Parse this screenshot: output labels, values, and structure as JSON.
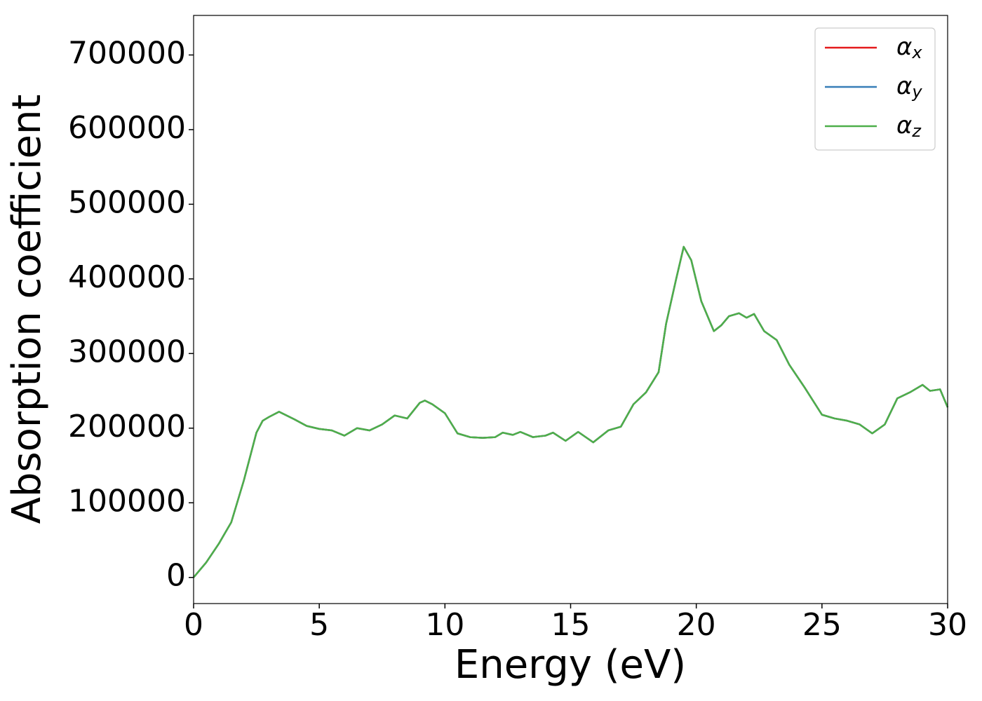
{
  "chart_data": {
    "type": "line",
    "xlabel": "Energy (eV)",
    "ylabel": "Absorption coefficient",
    "x": [
      0,
      0.5,
      1,
      1.5,
      2,
      2.5,
      2.75,
      3,
      3.4,
      4,
      4.5,
      5,
      5.5,
      6,
      6.5,
      7,
      7.5,
      8,
      8.5,
      9,
      9.2,
      9.5,
      10,
      10.5,
      11,
      11.5,
      12,
      12.3,
      12.7,
      13,
      13.5,
      14,
      14.3,
      14.8,
      15.3,
      15.9,
      16.5,
      17,
      17.5,
      18,
      18.5,
      18.8,
      19.2,
      19.5,
      19.8,
      20.2,
      20.7,
      21,
      21.3,
      21.7,
      22,
      22.3,
      22.7,
      23.2,
      23.7,
      24.3,
      25,
      25.5,
      26,
      26.5,
      27,
      27.5,
      28,
      28.5,
      29,
      29.3,
      29.7,
      30
    ],
    "series": [
      {
        "name": "αx",
        "color": "#e41a1c",
        "values": [
          0,
          20000,
          45000,
          74000,
          130000,
          194000,
          210000,
          215000,
          222000,
          212000,
          203000,
          199000,
          197000,
          190000,
          200000,
          197000,
          205000,
          217000,
          213000,
          234000,
          237000,
          232000,
          220000,
          193000,
          188000,
          187000,
          188000,
          194000,
          191000,
          195000,
          188000,
          190000,
          194000,
          183000,
          195000,
          181000,
          197000,
          202000,
          232000,
          248000,
          275000,
          340000,
          400000,
          443000,
          425000,
          370000,
          330000,
          338000,
          350000,
          354000,
          348000,
          353000,
          330000,
          318000,
          285000,
          255000,
          218000,
          213000,
          210000,
          205000,
          193000,
          205000,
          240000,
          248000,
          258000,
          250000,
          252000,
          228000
        ]
      },
      {
        "name": "αy",
        "color": "#377eb8",
        "values": [
          0,
          20000,
          45000,
          74000,
          130000,
          194000,
          210000,
          215000,
          222000,
          212000,
          203000,
          199000,
          197000,
          190000,
          200000,
          197000,
          205000,
          217000,
          213000,
          234000,
          237000,
          232000,
          220000,
          193000,
          188000,
          187000,
          188000,
          194000,
          191000,
          195000,
          188000,
          190000,
          194000,
          183000,
          195000,
          181000,
          197000,
          202000,
          232000,
          248000,
          275000,
          340000,
          400000,
          443000,
          425000,
          370000,
          330000,
          338000,
          350000,
          354000,
          348000,
          353000,
          330000,
          318000,
          285000,
          255000,
          218000,
          213000,
          210000,
          205000,
          193000,
          205000,
          240000,
          248000,
          258000,
          250000,
          252000,
          228000
        ]
      },
      {
        "name": "αz",
        "color": "#4daf4a",
        "values": [
          0,
          20000,
          45000,
          74000,
          130000,
          194000,
          210000,
          215000,
          222000,
          212000,
          203000,
          199000,
          197000,
          190000,
          200000,
          197000,
          205000,
          217000,
          213000,
          234000,
          237000,
          232000,
          220000,
          193000,
          188000,
          187000,
          188000,
          194000,
          191000,
          195000,
          188000,
          190000,
          194000,
          183000,
          195000,
          181000,
          197000,
          202000,
          232000,
          248000,
          275000,
          340000,
          400000,
          443000,
          425000,
          370000,
          330000,
          338000,
          350000,
          354000,
          348000,
          353000,
          330000,
          318000,
          285000,
          255000,
          218000,
          213000,
          210000,
          205000,
          193000,
          205000,
          240000,
          248000,
          258000,
          250000,
          252000,
          228000
        ]
      }
    ],
    "xlim": [
      0,
      30
    ],
    "xticks": [
      0,
      5,
      10,
      15,
      20,
      25,
      30
    ],
    "ylim": [
      -35000,
      753000
    ],
    "yticks": [
      0,
      100000,
      200000,
      300000,
      400000,
      500000,
      600000,
      700000
    ],
    "legend": "upper right",
    "grid": false
  }
}
